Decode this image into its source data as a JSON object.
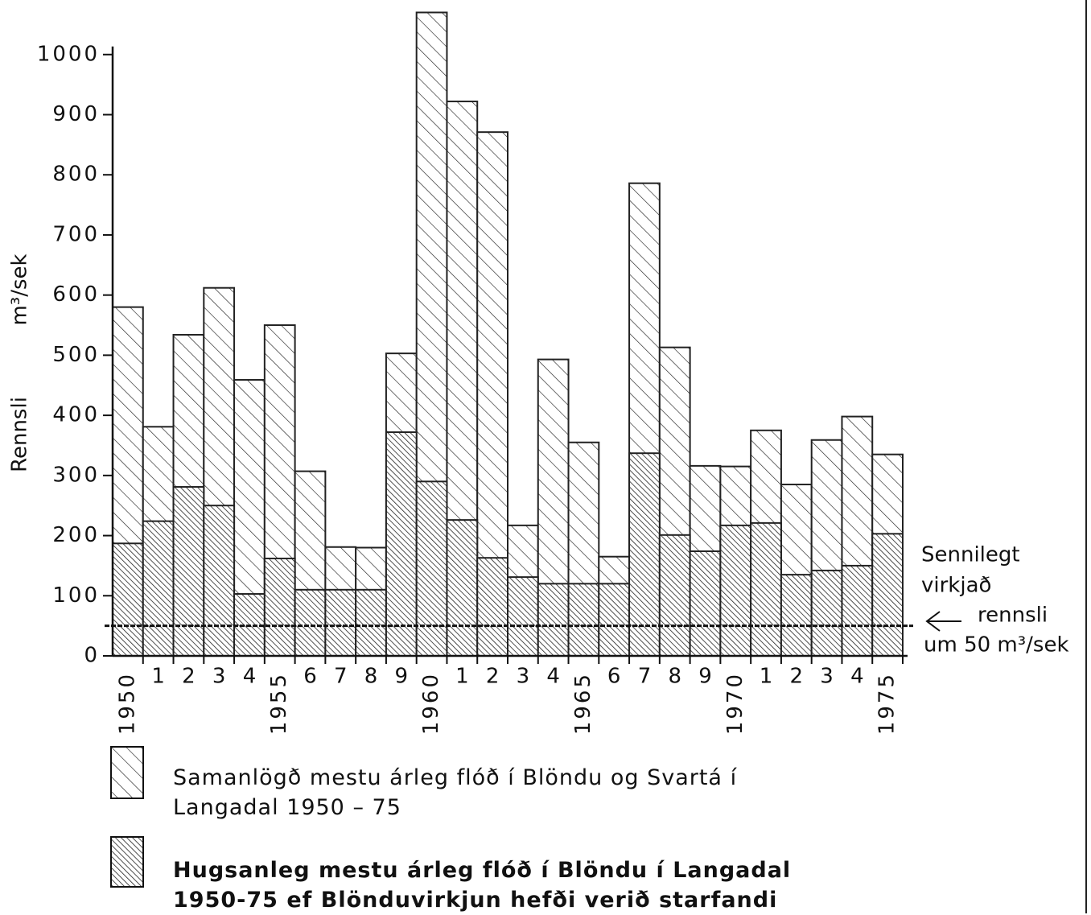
{
  "chart_data": {
    "type": "overlap_bar",
    "y_label": "Rennsli",
    "y_unit": "m³/sek",
    "categories": [
      "1950",
      "1",
      "2",
      "3",
      "4",
      "1955",
      "6",
      "7",
      "8",
      "9",
      "1960",
      "1",
      "2",
      "3",
      "4",
      "1965",
      "6",
      "7",
      "8",
      "9",
      "1970",
      "1",
      "2",
      "3",
      "4",
      "1975"
    ],
    "series": [
      {
        "name": "Samanlögð mestu árleg flóð í Blöndu og Svartá í Langadal 1950 – 75",
        "color": "#222222",
        "hatch": 13,
        "values": [
          580,
          381,
          534,
          612,
          459,
          550,
          307,
          181,
          180,
          503,
          1070,
          922,
          871,
          217,
          493,
          355,
          165,
          786,
          513,
          316,
          315,
          375,
          285,
          359,
          398,
          335
        ]
      },
      {
        "name": "Hugsanleg mestu árleg flóð í Blöndu í Langadal 1950-75 ef Blönduvirkjun hefði verið starfandi",
        "color": "#222222",
        "hatch": 5,
        "values": [
          187,
          224,
          281,
          250,
          103,
          162,
          110,
          110,
          110,
          372,
          290,
          226,
          163,
          131,
          120,
          120,
          120,
          337,
          201,
          174,
          217,
          221,
          135,
          142,
          150,
          203
        ]
      }
    ],
    "reference_line": 50,
    "annotation": [
      "Sennilegt",
      "virkjað",
      "rennsli",
      "um 50 m³/sek"
    ],
    "ylim": [
      0,
      1080
    ],
    "yticks": [
      0,
      100,
      200,
      300,
      400,
      500,
      600,
      700,
      800,
      900,
      1000
    ]
  }
}
